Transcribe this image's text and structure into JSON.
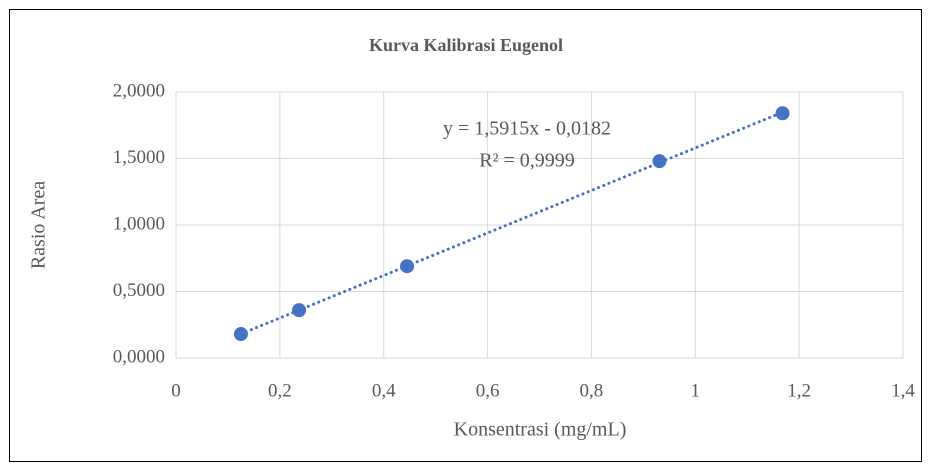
{
  "chart_data": {
    "type": "scatter",
    "title": "Kurva Kalibrasi Eugenol",
    "x_label": "Konsentrasi (mg/mL)",
    "y_label": "Rasio Area",
    "annotations": [
      "y = 1,5915x - 0,0182",
      "R² = 0,9999"
    ],
    "series": [
      {
        "color": "#4472c4",
        "x": [
          0.125,
          0.237,
          0.445,
          0.931,
          1.168
        ],
        "values": [
          0.18,
          0.36,
          0.69,
          1.48,
          1.84
        ]
      }
    ],
    "trendline": true,
    "xlim": [
      0,
      1.4
    ],
    "xticks": [
      0,
      {
        "value": 0.2,
        "label": "0,2"
      },
      {
        "value": 0.4,
        "label": "0,4"
      },
      {
        "value": 0.6,
        "label": "0,6"
      },
      {
        "value": 0.8,
        "label": "0,8"
      },
      1,
      {
        "value": 1.2,
        "label": "1,2"
      },
      {
        "value": 1.4,
        "label": "1,4"
      }
    ],
    "ylim": [
      0,
      2
    ],
    "yticks": [
      {
        "value": 0,
        "label": "0,0000"
      },
      {
        "value": 0.5,
        "label": "0,5000"
      },
      {
        "value": 1,
        "label": "1,0000"
      },
      {
        "value": 1.5,
        "label": "1,5000"
      },
      {
        "value": 2,
        "label": "2,0000"
      }
    ],
    "grid": true
  }
}
